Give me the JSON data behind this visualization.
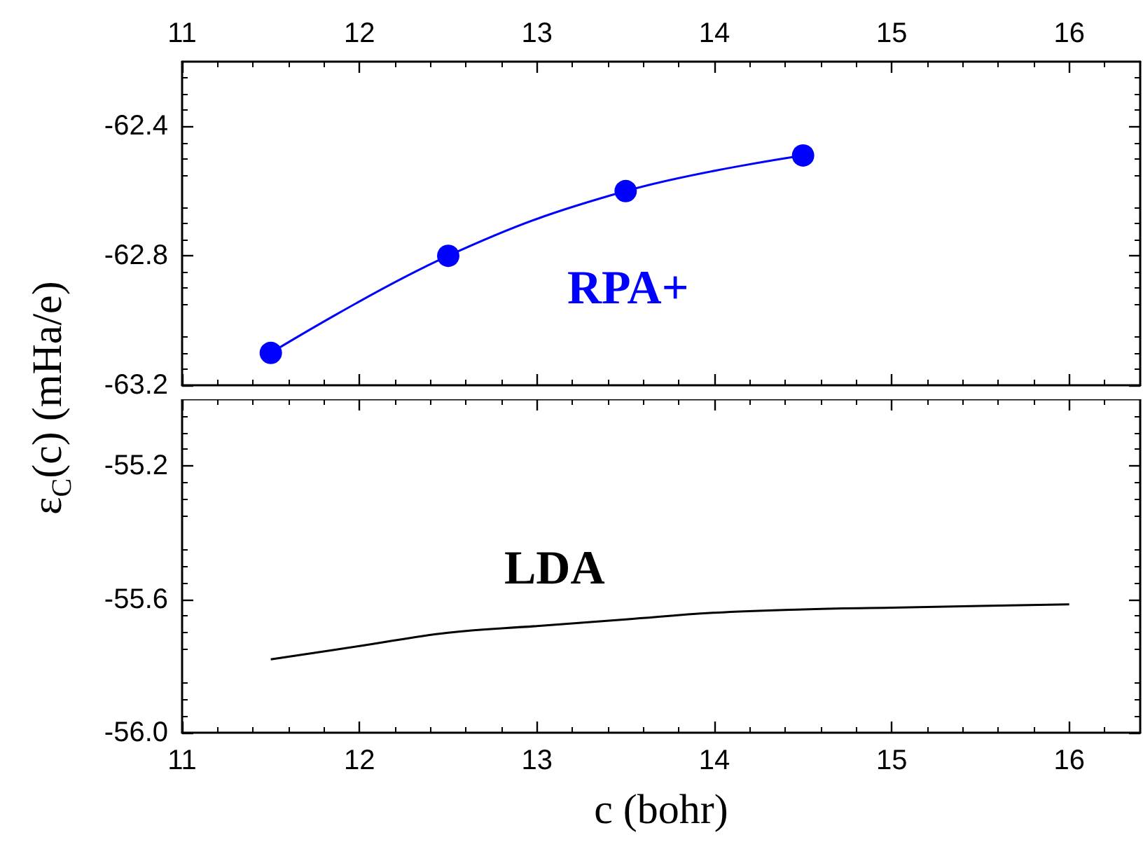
{
  "chart_data": [
    {
      "type": "line",
      "ylabel": "ε$_{C}$(c) (mHa/e)",
      "marker": "circle",
      "x2lim": [
        11,
        16.4
      ],
      "x2ticks": [
        11,
        12,
        13,
        14,
        15,
        16
      ],
      "ylim": [
        -63.2,
        -62.2
      ],
      "yticks": [
        -63.2,
        -62.8,
        -62.4
      ],
      "x": [
        11.5,
        12.5,
        13.5,
        14.5
      ],
      "series": [
        {
          "name": "RPA+",
          "axis": "x2",
          "color": "#0000ff",
          "values": [
            -63.1,
            -62.8,
            -62.6,
            -62.49
          ]
        }
      ]
    },
    {
      "type": "line",
      "xlabel": "c (bohr)",
      "marker": "none",
      "xlim": [
        11,
        16.4
      ],
      "xticks": [
        11,
        12,
        13,
        14,
        15,
        16
      ],
      "ylim": [
        -56.0,
        -55.0
      ],
      "yticks": [
        {
          "value": -56.0,
          "label": "-56.0"
        },
        {
          "value": -55.6,
          "label": "-55.6"
        },
        {
          "value": -55.2,
          "label": "-55.2"
        }
      ],
      "x": [
        11.5,
        12,
        12.5,
        13,
        13.5,
        14,
        14.5,
        15,
        15.5,
        16
      ],
      "series": [
        {
          "name": "LDA",
          "color": "#000000",
          "values": [
            -55.78,
            -55.74,
            -55.7,
            -55.68,
            -55.66,
            -55.64,
            -55.63,
            -55.625,
            -55.62,
            -55.615
          ]
        }
      ]
    }
  ]
}
